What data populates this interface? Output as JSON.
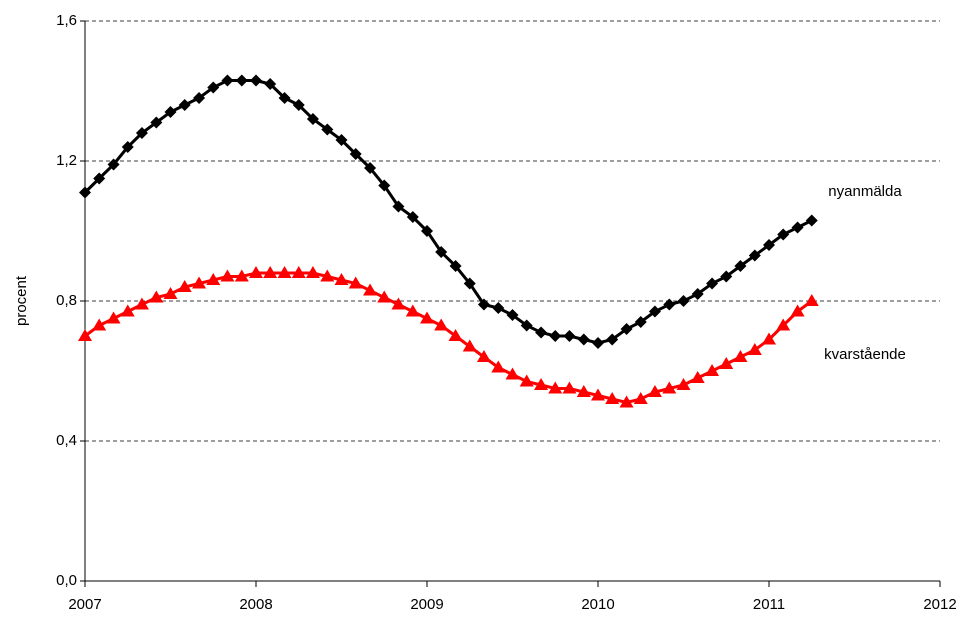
{
  "chart_data": {
    "type": "line",
    "y_label": "procent",
    "annotations": [
      {
        "text": "nyanmälda",
        "color": "#000000"
      },
      {
        "text": "kvarstående",
        "color": "#ff0000"
      }
    ],
    "x": [
      2007,
      2007.083,
      2007.167,
      2007.25,
      2007.333,
      2007.417,
      2007.5,
      2007.583,
      2007.667,
      2007.75,
      2007.833,
      2007.917,
      2008,
      2008.083,
      2008.167,
      2008.25,
      2008.333,
      2008.417,
      2008.5,
      2008.583,
      2008.667,
      2008.75,
      2008.833,
      2008.917,
      2009,
      2009.083,
      2009.167,
      2009.25,
      2009.333,
      2009.417,
      2009.5,
      2009.583,
      2009.667,
      2009.75,
      2009.833,
      2009.917,
      2010,
      2010.083,
      2010.167,
      2010.25,
      2010.333,
      2010.417,
      2010.5,
      2010.583,
      2010.667,
      2010.75,
      2010.833,
      2010.917,
      2011,
      2011.083,
      2011.167,
      2011.25
    ],
    "series": [
      {
        "name": "nyanmälda",
        "color": "#000000",
        "marker": "diamond",
        "values": [
          1.11,
          1.15,
          1.19,
          1.24,
          1.28,
          1.31,
          1.34,
          1.36,
          1.38,
          1.41,
          1.43,
          1.43,
          1.43,
          1.42,
          1.38,
          1.36,
          1.32,
          1.29,
          1.26,
          1.22,
          1.18,
          1.13,
          1.07,
          1.04,
          1.0,
          0.94,
          0.9,
          0.85,
          0.79,
          0.78,
          0.76,
          0.73,
          0.71,
          0.7,
          0.7,
          0.69,
          0.68,
          0.69,
          0.72,
          0.74,
          0.77,
          0.79,
          0.8,
          0.82,
          0.85,
          0.87,
          0.9,
          0.93,
          0.96,
          0.99,
          1.01,
          1.03
        ]
      },
      {
        "name": "kvarstående",
        "color": "#ff0000",
        "marker": "triangle",
        "values": [
          0.7,
          0.73,
          0.75,
          0.77,
          0.79,
          0.81,
          0.82,
          0.84,
          0.85,
          0.86,
          0.87,
          0.87,
          0.88,
          0.88,
          0.88,
          0.88,
          0.88,
          0.87,
          0.86,
          0.85,
          0.83,
          0.81,
          0.79,
          0.77,
          0.75,
          0.73,
          0.7,
          0.67,
          0.64,
          0.61,
          0.59,
          0.57,
          0.56,
          0.55,
          0.55,
          0.54,
          0.53,
          0.52,
          0.51,
          0.52,
          0.54,
          0.55,
          0.56,
          0.58,
          0.6,
          0.62,
          0.64,
          0.66,
          0.69,
          0.73,
          0.77,
          0.8
        ]
      }
    ],
    "xlim": [
      2007,
      2012
    ],
    "xticks": [
      2007,
      2008,
      2009,
      2010,
      2011,
      2012
    ],
    "ylim": [
      0,
      1.6
    ],
    "yticks": [
      {
        "value": 0,
        "label": "0,0"
      },
      {
        "value": 0.4,
        "label": "0,4"
      },
      {
        "value": 0.8,
        "label": "0,8"
      },
      {
        "value": 1.2,
        "label": "1,2"
      },
      {
        "value": 1.6,
        "label": "1,6"
      }
    ],
    "grid": true
  }
}
